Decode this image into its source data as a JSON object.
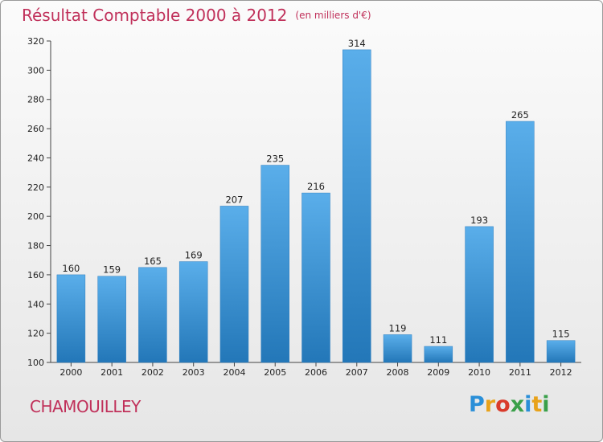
{
  "header": {
    "title": "Résultat Comptable 2000 à 2012",
    "subtitle": "(en milliers d'€)"
  },
  "commune": "CHAMOUILLEY",
  "logo": {
    "letters": [
      "P",
      "r",
      "o",
      "x",
      "i",
      "t",
      "i"
    ],
    "colors": [
      "#2a8fd8",
      "#e8a21a",
      "#d93a2a",
      "#3aa04a",
      "#2a8fd8",
      "#e8a21a",
      "#3aa04a"
    ]
  },
  "chart_data": {
    "type": "bar",
    "categories": [
      "2000",
      "2001",
      "2002",
      "2003",
      "2004",
      "2005",
      "2006",
      "2007",
      "2008",
      "2009",
      "2010",
      "2011",
      "2012"
    ],
    "values": [
      160,
      159,
      165,
      169,
      207,
      235,
      216,
      314,
      119,
      111,
      193,
      265,
      115
    ],
    "title": "Résultat Comptable 2000 à 2012",
    "subtitle": "(en milliers d'€)",
    "xlabel": "",
    "ylabel": "",
    "ylim": [
      100,
      320
    ],
    "yticks": [
      100,
      120,
      140,
      160,
      180,
      200,
      220,
      240,
      260,
      280,
      300,
      320
    ],
    "grid": false,
    "bar_color": "#3a8fd6"
  }
}
